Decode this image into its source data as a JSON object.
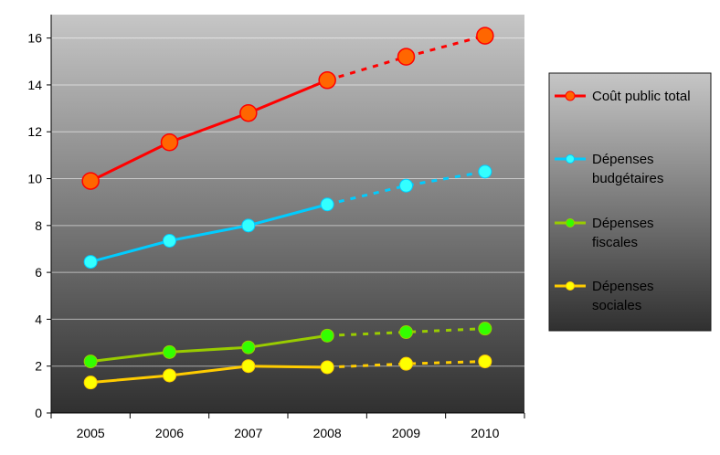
{
  "chart_data": {
    "type": "line",
    "title": "",
    "xlabel": "",
    "ylabel": "",
    "categories": [
      "2005",
      "2006",
      "2007",
      "2008",
      "2009",
      "2010"
    ],
    "ylim": [
      0,
      17
    ],
    "yticks": [
      0,
      2,
      4,
      6,
      8,
      10,
      12,
      14,
      16
    ],
    "grid": true,
    "legend_position": "right",
    "solid_until_index": 3,
    "series": [
      {
        "name": "Coût public total",
        "color": "#ff0000",
        "marker_color": "#ff6600",
        "marker": "large",
        "values": [
          9.9,
          11.55,
          12.8,
          14.2,
          15.2,
          16.1
        ]
      },
      {
        "name": "Dépenses budgétaires",
        "color": "#00ccff",
        "marker_color": "#33ffff",
        "marker": "medium",
        "values": [
          6.45,
          7.35,
          8.0,
          8.9,
          9.7,
          10.3
        ]
      },
      {
        "name": "Dépenses fiscales",
        "color": "#99cc00",
        "marker_color": "#33ff00",
        "marker": "medium",
        "values": [
          2.2,
          2.6,
          2.8,
          3.3,
          3.45,
          3.6
        ]
      },
      {
        "name": "Dépenses sociales",
        "color": "#ffcc00",
        "marker_color": "#ffff00",
        "marker": "medium",
        "values": [
          1.3,
          1.6,
          2.0,
          1.95,
          2.1,
          2.2
        ]
      }
    ]
  }
}
